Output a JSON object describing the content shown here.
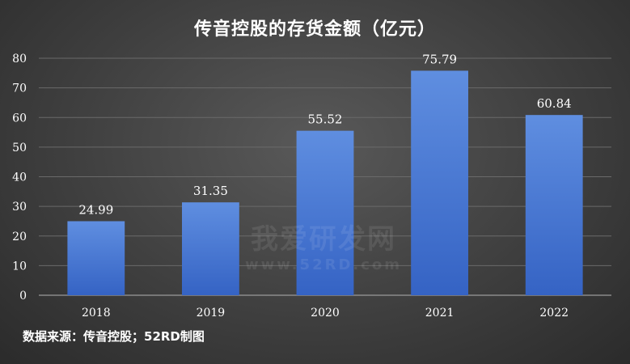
{
  "chart_data": {
    "type": "bar",
    "title": "传音控股的存货金额（亿元）",
    "categories": [
      "2018",
      "2019",
      "2020",
      "2021",
      "2022"
    ],
    "values": [
      24.99,
      31.35,
      55.52,
      75.79,
      60.84
    ],
    "data_labels": [
      "24.99",
      "31.35",
      "55.52",
      "75.79",
      "60.84"
    ],
    "xlabel": "",
    "ylabel": "",
    "ylim": [
      0,
      80
    ],
    "yticks": [
      0,
      10,
      20,
      30,
      40,
      50,
      60,
      70,
      80
    ],
    "grid": true,
    "legend": "none",
    "bar_color": "#4a78d0"
  },
  "source_note": "数据来源：传音控股；52RD制图",
  "watermark": {
    "text_cn": "我爱研发网",
    "text_url": "www.52RD.com"
  }
}
